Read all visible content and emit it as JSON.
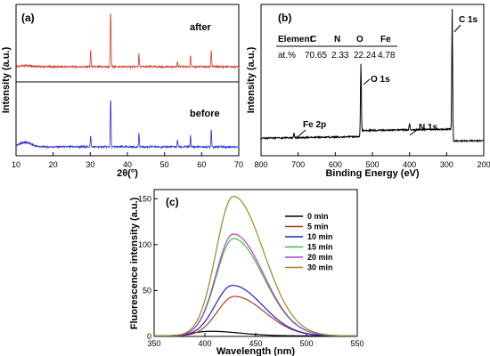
{
  "chart_data": [
    {
      "panel_label": "(a)",
      "type": "line",
      "xlabel": "2θ(°)",
      "ylabel": "Intensity (a.u.)",
      "xlim": [
        10,
        70
      ],
      "xticks": [
        10,
        20,
        30,
        40,
        50,
        60,
        70
      ],
      "series": [
        {
          "name": "after",
          "color": "#d23a2a",
          "peaks": [
            [
              30.1,
              0.3
            ],
            [
              35.5,
              1.0
            ],
            [
              43.1,
              0.22
            ],
            [
              53.5,
              0.1
            ],
            [
              57.0,
              0.22
            ],
            [
              62.6,
              0.3
            ]
          ]
        },
        {
          "name": "before",
          "color": "#2a2ad2",
          "peaks": [
            [
              30.1,
              0.2
            ],
            [
              35.5,
              0.88
            ],
            [
              43.1,
              0.23
            ],
            [
              53.5,
              0.13
            ],
            [
              57.0,
              0.2
            ],
            [
              62.6,
              0.31
            ]
          ]
        }
      ]
    },
    {
      "panel_label": "(b)",
      "type": "line",
      "xlabel": "Binding Energy (eV)",
      "ylabel": "Intensity (a.u.)",
      "xlim": [
        800,
        200
      ],
      "xticks": [
        800,
        700,
        600,
        500,
        400,
        300,
        200
      ],
      "annotations": [
        "C 1s",
        "O 1s",
        "N 1s",
        "Fe 2p"
      ],
      "table": {
        "header": [
          "Element",
          "C",
          "N",
          "O",
          "Fe"
        ],
        "row": [
          "at.%",
          "70.65",
          "2.33",
          "22.24",
          "4.78"
        ]
      },
      "peaks": [
        [
          711,
          0.04
        ],
        [
          531,
          0.6
        ],
        [
          400,
          0.05
        ],
        [
          285,
          1.0
        ]
      ]
    },
    {
      "panel_label": "(c)",
      "type": "line",
      "xlabel": "Wavelength (nm)",
      "ylabel": "Fluorescence intensity (a.u.)",
      "xlim": [
        350,
        550
      ],
      "ylim": [
        0,
        160
      ],
      "xticks": [
        350,
        400,
        450,
        500,
        550
      ],
      "yticks": [
        0,
        50,
        100,
        150
      ],
      "legend_position": "top-right",
      "series": [
        {
          "name": "0 min",
          "color": "#000000",
          "peak_x": 405,
          "peak_y": 5
        },
        {
          "name": "5 min",
          "color": "#b33a2a",
          "peak_x": 429,
          "peak_y": 43
        },
        {
          "name": "10 min",
          "color": "#1f1fcf",
          "peak_x": 427,
          "peak_y": 55
        },
        {
          "name": "15 min",
          "color": "#3ec43e",
          "peak_x": 428,
          "peak_y": 106
        },
        {
          "name": "20 min",
          "color": "#b040d0",
          "peak_x": 428,
          "peak_y": 111
        },
        {
          "name": "30 min",
          "color": "#8f8f1f",
          "peak_x": 428,
          "peak_y": 152
        }
      ]
    }
  ]
}
